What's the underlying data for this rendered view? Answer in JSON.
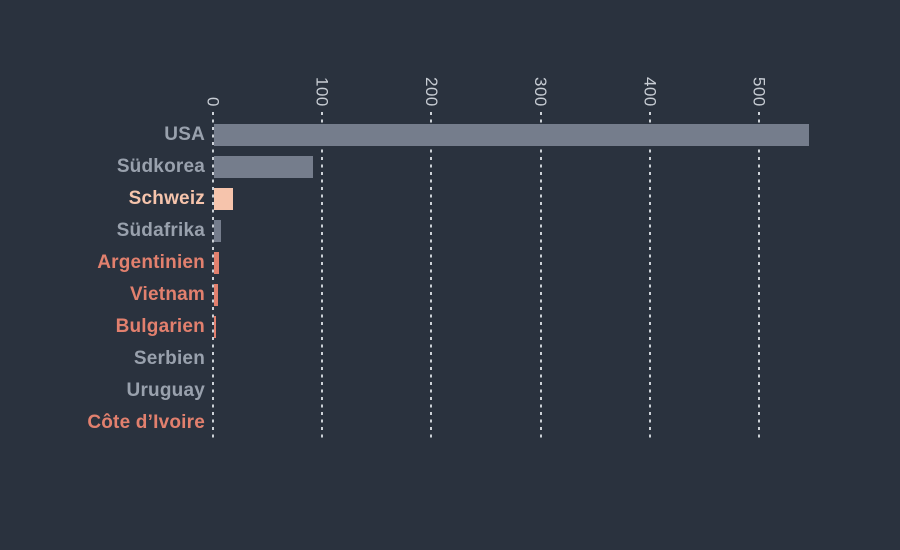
{
  "chart_data": {
    "type": "bar",
    "orientation": "horizontal",
    "title": "",
    "xlabel": "",
    "ylabel": "",
    "axis_position": "top",
    "grid": "dashed-vertical",
    "xlim": [
      0,
      545
    ],
    "x_ticks": [
      "0",
      "100",
      "200",
      "300",
      "400",
      "500"
    ],
    "x_tick_values": [
      0,
      100,
      200,
      300,
      400,
      500
    ],
    "categories": [
      "USA",
      "Südkorea",
      "Schweiz",
      "Südafrika",
      "Argentinien",
      "Vietnam",
      "Bulgarien",
      "Serbien",
      "Uruguay",
      "Côte d’Ivoire"
    ],
    "values": [
      545,
      91,
      17,
      6,
      5,
      4,
      2,
      0,
      0,
      0
    ],
    "bar_colors": [
      "#757d8c",
      "#757d8c",
      "#f6c4ac",
      "#757d8c",
      "#e2806e",
      "#e2806e",
      "#e2806e",
      "#757d8c",
      "#757d8c",
      "#e2806e"
    ],
    "label_colors": [
      "#99a1ad",
      "#99a1ad",
      "#f6c4ac",
      "#99a1ad",
      "#e2806e",
      "#e2806e",
      "#e2806e",
      "#99a1ad",
      "#99a1ad",
      "#e2806e"
    ]
  },
  "colors": {
    "background": "#2a323e",
    "gridline": "#ccd1d7",
    "tick_label": "#c7ccd3",
    "bar_gray": "#757d8c",
    "bar_peach": "#f6c4ac",
    "bar_coral": "#e2806e",
    "label_gray": "#99a1ad"
  }
}
